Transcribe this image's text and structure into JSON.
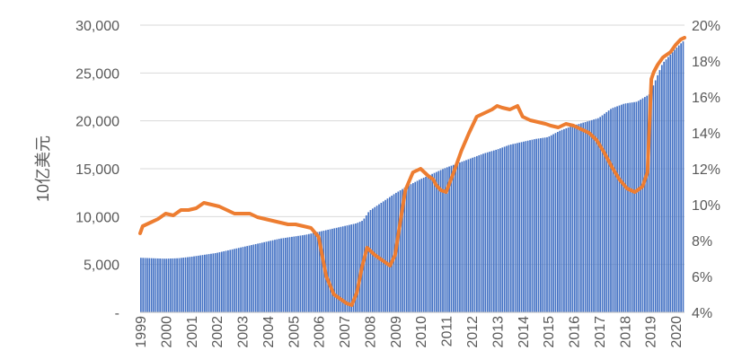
{
  "chart_data": {
    "type": "bar+line",
    "ylabel": "10亿美元",
    "y_left_ticks": [
      "-",
      "5,000",
      "10,000",
      "15,000",
      "20,000",
      "25,000",
      "30,000"
    ],
    "y_left_lim": [
      0,
      30000
    ],
    "y_right_ticks": [
      "4%",
      "6%",
      "8%",
      "10%",
      "12%",
      "14%",
      "16%",
      "18%",
      "20%"
    ],
    "y_right_lim": [
      4,
      20
    ],
    "x_ticks": [
      "1999",
      "2000",
      "2001",
      "2002",
      "2003",
      "2004",
      "2005",
      "2006",
      "2007",
      "2008",
      "2009",
      "2010",
      "2011",
      "2012",
      "2013",
      "2014",
      "2015",
      "2016",
      "2017",
      "2018",
      "2019",
      "2020"
    ],
    "bar_color": "#4472C4",
    "line_color": "#ED7D31",
    "series": [
      {
        "type": "bar",
        "axis": "left",
        "x": [
          1999.0,
          1999.5,
          2000.0,
          2000.5,
          2001.0,
          2001.5,
          2002.0,
          2002.5,
          2003.0,
          2003.5,
          2004.0,
          2004.5,
          2005.0,
          2005.5,
          2006.0,
          2006.5,
          2007.0,
          2007.5,
          2007.75,
          2008.0,
          2008.5,
          2009.0,
          2009.5,
          2010.0,
          2010.5,
          2011.0,
          2011.5,
          2012.0,
          2012.5,
          2013.0,
          2013.5,
          2014.0,
          2014.5,
          2015.0,
          2015.5,
          2016.0,
          2016.5,
          2017.0,
          2017.5,
          2018.0,
          2018.5,
          2019.0,
          2019.5,
          2020.0,
          2020.3
        ],
        "values": [
          5700,
          5650,
          5600,
          5650,
          5800,
          6000,
          6200,
          6500,
          6800,
          7100,
          7400,
          7700,
          7900,
          8100,
          8400,
          8700,
          9000,
          9300,
          9600,
          10600,
          11500,
          12400,
          13200,
          13900,
          14500,
          15100,
          15600,
          16100,
          16600,
          17000,
          17500,
          17800,
          18100,
          18300,
          19000,
          19500,
          19900,
          20300,
          21300,
          21800,
          22000,
          22800,
          26000,
          27500,
          28300
        ]
      },
      {
        "type": "line",
        "axis": "right",
        "x": [
          1999.0,
          1999.1,
          1999.4,
          1999.7,
          2000.0,
          2000.3,
          2000.6,
          2000.9,
          2001.2,
          2001.5,
          2001.8,
          2002.1,
          2002.4,
          2002.7,
          2003.0,
          2003.3,
          2003.6,
          2003.9,
          2004.2,
          2004.5,
          2004.8,
          2005.1,
          2005.4,
          2005.7,
          2006.0,
          2006.3,
          2006.6,
          2006.9,
          2007.1,
          2007.3,
          2007.5,
          2007.7,
          2007.9,
          2008.2,
          2008.5,
          2008.8,
          2009.0,
          2009.2,
          2009.4,
          2009.7,
          2010.0,
          2010.3,
          2010.5,
          2010.6,
          2010.8,
          2011.0,
          2011.3,
          2011.6,
          2011.9,
          2012.2,
          2012.5,
          2012.8,
          2013.0,
          2013.2,
          2013.5,
          2013.8,
          2014.0,
          2014.3,
          2014.6,
          2014.9,
          2015.1,
          2015.4,
          2015.7,
          2016.0,
          2016.3,
          2016.6,
          2016.9,
          2017.2,
          2017.5,
          2017.8,
          2018.1,
          2018.4,
          2018.7,
          2018.9,
          2019.05,
          2019.15,
          2019.3,
          2019.5,
          2019.8,
          2020.0,
          2020.2,
          2020.35
        ],
        "values": [
          8.4,
          8.8,
          9.0,
          9.2,
          9.5,
          9.4,
          9.7,
          9.7,
          9.8,
          10.1,
          10.0,
          9.9,
          9.7,
          9.5,
          9.5,
          9.5,
          9.3,
          9.2,
          9.1,
          9.0,
          8.9,
          8.9,
          8.8,
          8.7,
          8.2,
          6.0,
          5.0,
          4.7,
          4.5,
          4.4,
          5.1,
          6.5,
          7.6,
          7.2,
          6.9,
          6.6,
          7.2,
          9.0,
          10.8,
          11.8,
          12.0,
          11.6,
          11.4,
          11.1,
          10.8,
          10.7,
          11.8,
          13.0,
          14.0,
          14.9,
          15.1,
          15.3,
          15.5,
          15.4,
          15.3,
          15.5,
          14.9,
          14.7,
          14.6,
          14.5,
          14.4,
          14.3,
          14.5,
          14.4,
          14.2,
          14.0,
          13.6,
          12.9,
          12.1,
          11.4,
          10.9,
          10.7,
          11.0,
          11.8,
          17.0,
          17.4,
          17.8,
          18.2,
          18.5,
          18.9,
          19.2,
          19.3
        ]
      }
    ]
  }
}
